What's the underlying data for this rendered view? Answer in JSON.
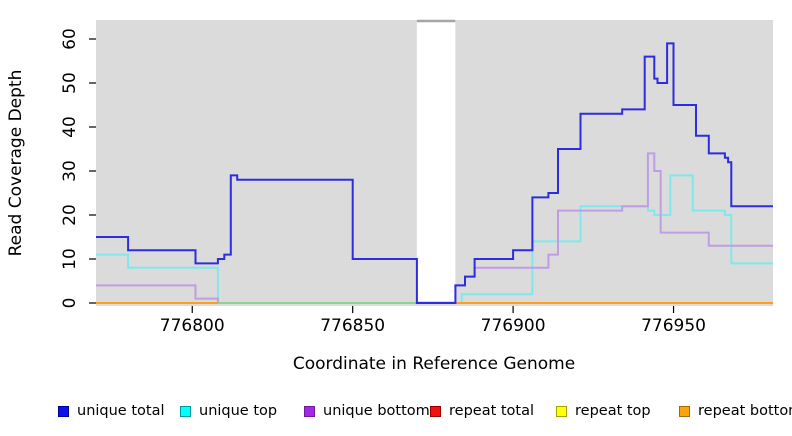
{
  "chart_data": {
    "type": "line",
    "subtype": "step-coverage",
    "title": "",
    "xlabel": "Coordinate in Reference Genome",
    "ylabel": "Read Coverage Depth",
    "x_ticks": [
      776800,
      776850,
      776900,
      776950
    ],
    "y_ticks": [
      0,
      10,
      20,
      30,
      40,
      50,
      60
    ],
    "xlim": [
      776770,
      776981
    ],
    "ylim": [
      0,
      64
    ],
    "grid": false,
    "plot_bg_color": "#dbdbdb",
    "masked_region": {
      "x1": 776870,
      "x2": 776882,
      "fill": "#ffffff",
      "top_line_color": "#a6a6a6"
    },
    "x_end": 776981,
    "series": [
      {
        "name": "unique total",
        "color": "#2d2ddf",
        "points": [
          [
            776770,
            15
          ],
          [
            776780,
            12
          ],
          [
            776801,
            9
          ],
          [
            776808,
            10
          ],
          [
            776810,
            11
          ],
          [
            776812,
            29
          ],
          [
            776814,
            28
          ],
          [
            776850,
            10
          ],
          [
            776870,
            0
          ],
          [
            776882,
            4
          ],
          [
            776885,
            6
          ],
          [
            776888,
            10
          ],
          [
            776900,
            12
          ],
          [
            776906,
            24
          ],
          [
            776911,
            25
          ],
          [
            776914,
            35
          ],
          [
            776921,
            43
          ],
          [
            776934,
            44
          ],
          [
            776941,
            56
          ],
          [
            776944,
            51
          ],
          [
            776945,
            50
          ],
          [
            776948,
            59
          ],
          [
            776950,
            45
          ],
          [
            776957,
            38
          ],
          [
            776961,
            34
          ],
          [
            776966,
            33
          ],
          [
            776967,
            32
          ],
          [
            776968,
            22
          ]
        ]
      },
      {
        "name": "unique top",
        "color": "#7fe8ec",
        "points": [
          [
            776770,
            11
          ],
          [
            776780,
            8
          ],
          [
            776808,
            0
          ],
          [
            776884,
            2
          ],
          [
            776906,
            14
          ],
          [
            776921,
            22
          ],
          [
            776942,
            21
          ],
          [
            776944,
            20
          ],
          [
            776949,
            29
          ],
          [
            776956,
            21
          ],
          [
            776966,
            20
          ],
          [
            776968,
            9
          ]
        ]
      },
      {
        "name": "unique bottom",
        "color": "#c09de2",
        "points": [
          [
            776770,
            4
          ],
          [
            776801,
            1
          ],
          [
            776808,
            0
          ],
          [
            776882,
            4
          ],
          [
            776885,
            6
          ],
          [
            776888,
            8
          ],
          [
            776911,
            11
          ],
          [
            776914,
            21
          ],
          [
            776934,
            22
          ],
          [
            776942,
            34
          ],
          [
            776944,
            30
          ],
          [
            776946,
            16
          ],
          [
            776961,
            13
          ]
        ]
      },
      {
        "name": "repeat total",
        "color": "#cc2222",
        "points": [
          [
            776770,
            0
          ]
        ]
      },
      {
        "name": "repeat top",
        "color": "#e8e800",
        "points": [
          [
            776770,
            0
          ]
        ]
      },
      {
        "name": "repeat bottom",
        "color": "#ff9f1e",
        "points": [
          [
            776770,
            0
          ]
        ]
      }
    ],
    "zero_line_blend_segment": {
      "x1": 776808,
      "x2": 776870,
      "color": "#8fd191"
    },
    "legend_position": "bottom"
  },
  "legend": {
    "items": [
      {
        "label": "unique total",
        "fill": "#0f0fef",
        "border": "#000090"
      },
      {
        "label": "unique top",
        "fill": "#00ffff",
        "border": "#009999"
      },
      {
        "label": "unique bottom",
        "fill": "#a626e8",
        "border": "#701a9e"
      },
      {
        "label": "repeat total",
        "fill": "#f50f0f",
        "border": "#8e0000"
      },
      {
        "label": "repeat top",
        "fill": "#ffff05",
        "border": "#a3a300"
      },
      {
        "label": "repeat bottom",
        "fill": "#ffa408",
        "border": "#a66a00"
      }
    ]
  }
}
